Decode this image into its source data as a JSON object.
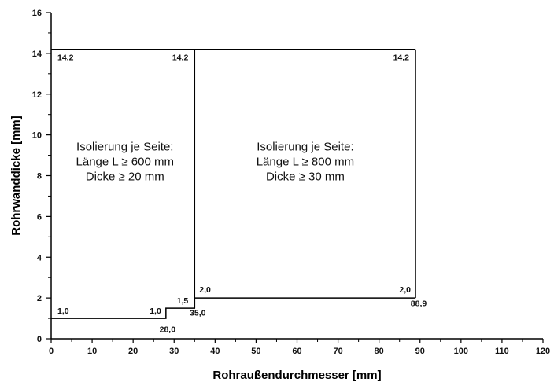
{
  "chart_data": {
    "type": "line",
    "title": "",
    "xlabel": "Rohraußendurchmesser [mm]",
    "ylabel": "Rohrwanddicke [mm]",
    "xlim": [
      0,
      120
    ],
    "ylim": [
      0,
      16
    ],
    "x_ticks": [
      0,
      10,
      20,
      30,
      40,
      50,
      60,
      70,
      80,
      90,
      100,
      110,
      120
    ],
    "y_ticks": [
      0,
      2,
      4,
      6,
      8,
      10,
      12,
      14,
      16
    ],
    "grid": false,
    "series": [
      {
        "boundary": "lower",
        "x": [
          0,
          28.0,
          28.0,
          35.0,
          35.0,
          88.9
        ],
        "y": [
          1.0,
          1.0,
          1.5,
          1.5,
          2.0,
          2.0
        ]
      },
      {
        "boundary": "upper",
        "x": [
          0,
          88.9
        ],
        "y": [
          14.2,
          14.2
        ]
      },
      {
        "boundary": "divider",
        "x": [
          35.0,
          35.0
        ],
        "y": [
          1.5,
          14.2
        ]
      },
      {
        "boundary": "right",
        "x": [
          88.9,
          88.9
        ],
        "y": [
          2.0,
          14.2
        ]
      }
    ],
    "annotations": [
      {
        "text": "14,2",
        "x": 0,
        "y": 14.2
      },
      {
        "text": "14,2",
        "x": 35.0,
        "y": 14.2
      },
      {
        "text": "14,2",
        "x": 88.9,
        "y": 14.2
      },
      {
        "text": "1,0",
        "x": 0,
        "y": 1.0
      },
      {
        "text": "1,0",
        "x": 28.0,
        "y": 1.0
      },
      {
        "text": "1,5",
        "x": 35.0,
        "y": 1.5
      },
      {
        "text": "2,0",
        "x": 35.0,
        "y": 2.0
      },
      {
        "text": "2,0",
        "x": 88.9,
        "y": 2.0
      },
      {
        "text": "28,0",
        "x": 28.0,
        "y": 0.8
      },
      {
        "text": "35,0",
        "x": 35.0,
        "y": 1.3
      },
      {
        "text": "88,9",
        "x": 88.9,
        "y": 1.8
      }
    ],
    "regions": [
      {
        "lines": [
          "Isolierung je Seite:",
          "Länge L ≥ 600 mm",
          "Dicke ≥ 20 mm"
        ],
        "x": 18,
        "y": 8.5
      },
      {
        "lines": [
          "Isolierung je Seite:",
          "Länge L ≥ 800 mm",
          "Dicke ≥ 30 mm"
        ],
        "x": 62,
        "y": 8.5
      }
    ]
  }
}
